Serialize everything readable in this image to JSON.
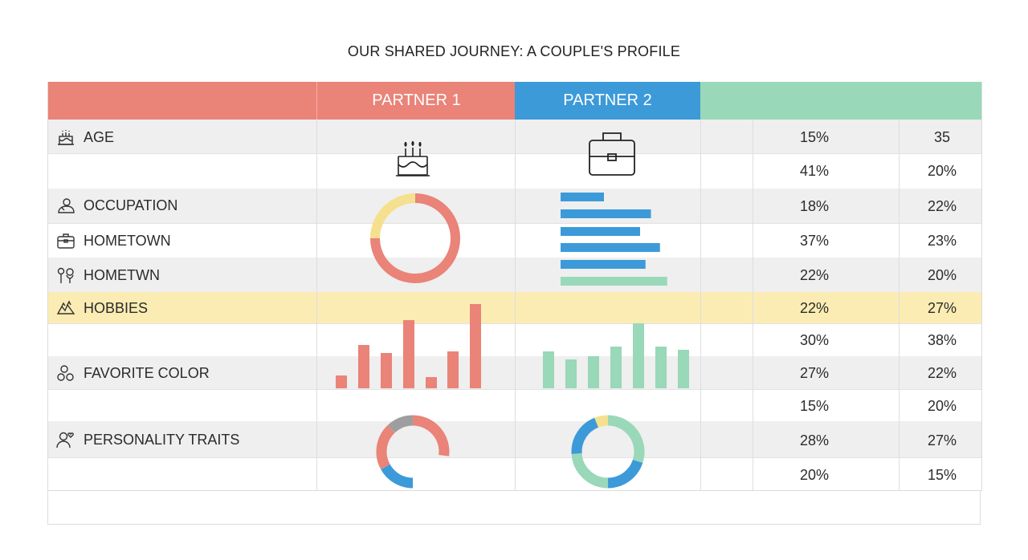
{
  "title": "OUR SHARED JOURNEY: A COUPLE'S PROFILE",
  "header": {
    "partner1": "PARTNER 1",
    "partner2": "PARTNER 2"
  },
  "colors": {
    "partner1": "#ea8378",
    "partner2": "#3c9ad9",
    "third": "#99d8b8",
    "highlight": "#fbecb4",
    "donut_yellow": "#f5e08f",
    "donut_gray": "#9e9e9e"
  },
  "labels": {
    "age": "AGE",
    "occupation": "OCCUPATION",
    "hometown": "HOMETOWN",
    "hometwn": "HOMETWN",
    "hobbies": "HOBBIES",
    "favorite_color": "FAVORITE COLOR",
    "personality_traits": "PERSONALITY TRAITS"
  },
  "icons": {
    "age": "cake-icon",
    "occupation": "person-icon",
    "hometown": "briefcase-icon",
    "hometwn": "pin-icon",
    "hobbies": "puzzle-icon",
    "favorite_color": "palette-icon",
    "personality_traits": "person-heart-icon",
    "partner1_age": "birthday-cake-icon",
    "partner2_age": "briefcase-icon"
  },
  "columns": {
    "col1": [
      "15%",
      "41%",
      "18%",
      "37%",
      "22%",
      "22%",
      "30%",
      "27%",
      "15%",
      "28%",
      "20%"
    ],
    "col2": [
      "35",
      "20%",
      "22%",
      "23%",
      "20%",
      "27%",
      "38%",
      "22%",
      "20%",
      "27%",
      "15%"
    ]
  },
  "chart_data": [
    {
      "type": "pie",
      "name": "partner1_occupation_donut",
      "slices": [
        {
          "label": "red",
          "value": 75,
          "color": "#ea8378"
        },
        {
          "label": "yellow",
          "value": 25,
          "color": "#f5e08f"
        }
      ]
    },
    {
      "type": "bar",
      "name": "partner2_occupation_hbars",
      "orientation": "horizontal",
      "values": [
        24,
        50,
        44,
        55,
        47,
        59
      ],
      "colors": [
        "#3c9ad9",
        "#3c9ad9",
        "#3c9ad9",
        "#3c9ad9",
        "#3c9ad9",
        "#99d8b8"
      ]
    },
    {
      "type": "bar",
      "name": "partner1_hobbies_bars",
      "values": [
        16,
        54,
        44,
        85,
        14,
        46,
        105
      ],
      "color": "#ea8378"
    },
    {
      "type": "bar",
      "name": "partner2_hobbies_bars",
      "values": [
        46,
        36,
        40,
        52,
        81,
        52,
        48
      ],
      "color": "#99d8b8"
    },
    {
      "type": "pie",
      "name": "partner1_personality_donut",
      "slices": [
        {
          "label": "red",
          "value": 27,
          "color": "#ea8378"
        },
        {
          "label": "blank",
          "value": 23,
          "color": "#ffffff"
        },
        {
          "label": "blue",
          "value": 17,
          "color": "#3c9ad9"
        },
        {
          "label": "red2",
          "value": 21,
          "color": "#ea8378"
        },
        {
          "label": "gray",
          "value": 12,
          "color": "#9e9e9e"
        }
      ]
    },
    {
      "type": "pie",
      "name": "partner2_personality_donut",
      "slices": [
        {
          "label": "green",
          "value": 30,
          "color": "#99d8b8"
        },
        {
          "label": "blue",
          "value": 20,
          "color": "#3c9ad9"
        },
        {
          "label": "green2",
          "value": 24,
          "color": "#99d8b8"
        },
        {
          "label": "blue2",
          "value": 20,
          "color": "#3c9ad9"
        },
        {
          "label": "yellow",
          "value": 6,
          "color": "#f5e08f"
        }
      ]
    }
  ]
}
